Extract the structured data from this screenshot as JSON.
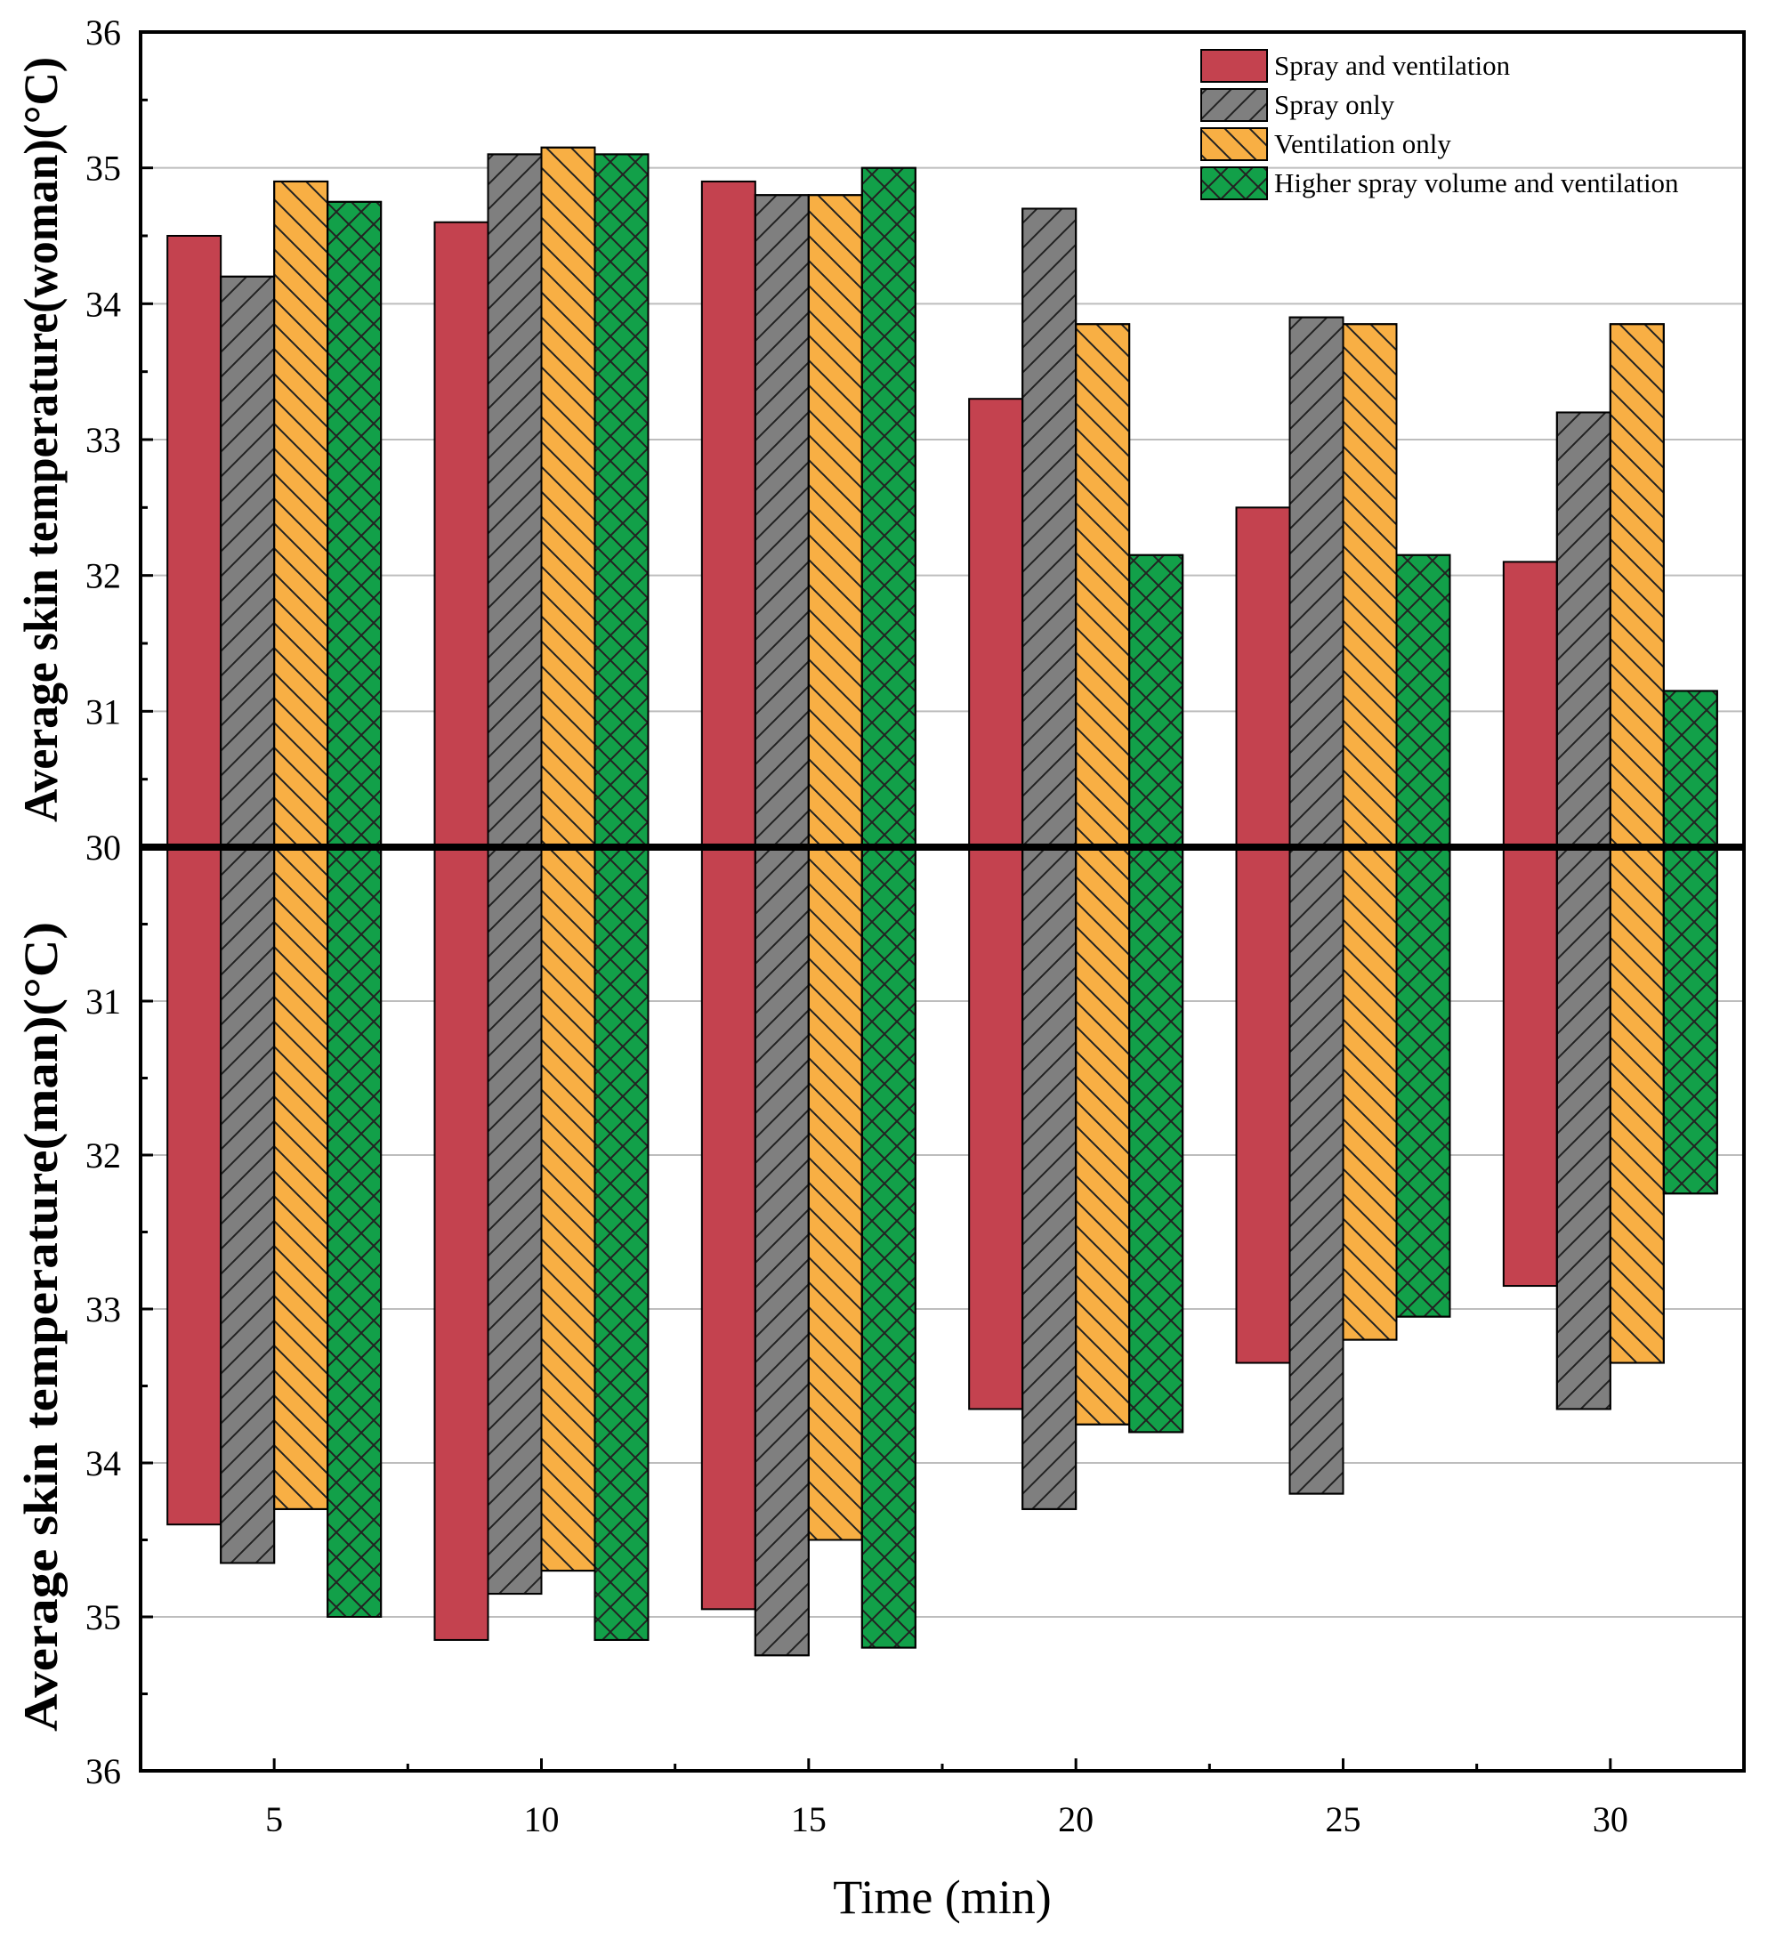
{
  "chart_data": {
    "type": "bar",
    "layout": "mirrored",
    "categories": [
      "5",
      "10",
      "15",
      "20",
      "25",
      "30"
    ],
    "xlabel": "Time (min)",
    "ylabel_top": "Average skin temperature(woman)(°C)",
    "ylabel_bottom": "Average skin temperature(man)(°C)",
    "ylim_top": [
      30,
      36
    ],
    "ylim_bottom": [
      30,
      36
    ],
    "yticks_top": [
      "30",
      "31",
      "32",
      "33",
      "34",
      "35",
      "36"
    ],
    "yticks_bottom": [
      "31",
      "32",
      "33",
      "34",
      "35",
      "36"
    ],
    "grid": true,
    "legend_position": "top-right",
    "series": [
      {
        "name": "Spray and ventilation",
        "color": "#C4424F",
        "pattern": "none",
        "woman": [
          34.5,
          34.6,
          34.9,
          33.3,
          32.5,
          32.1
        ],
        "man": [
          34.4,
          35.15,
          34.95,
          33.65,
          33.35,
          32.85
        ]
      },
      {
        "name": "Spray only",
        "color": "#7F7F7F",
        "pattern": "forward-diagonal",
        "woman": [
          34.2,
          35.1,
          34.8,
          34.7,
          33.9,
          33.2
        ],
        "man": [
          34.65,
          34.85,
          35.25,
          34.3,
          34.2,
          33.65
        ]
      },
      {
        "name": "Ventilation only",
        "color": "#F8AF44",
        "pattern": "back-diagonal",
        "woman": [
          34.9,
          35.15,
          34.8,
          33.85,
          33.85,
          33.85
        ],
        "man": [
          34.3,
          34.7,
          34.5,
          33.75,
          33.2,
          33.35
        ]
      },
      {
        "name": "Higher spray volume and ventilation",
        "color": "#12A049",
        "pattern": "crosshatch",
        "woman": [
          34.75,
          35.1,
          35.0,
          32.15,
          32.15,
          31.15
        ],
        "man": [
          35.0,
          35.15,
          35.2,
          33.8,
          33.05,
          32.25
        ]
      }
    ]
  }
}
